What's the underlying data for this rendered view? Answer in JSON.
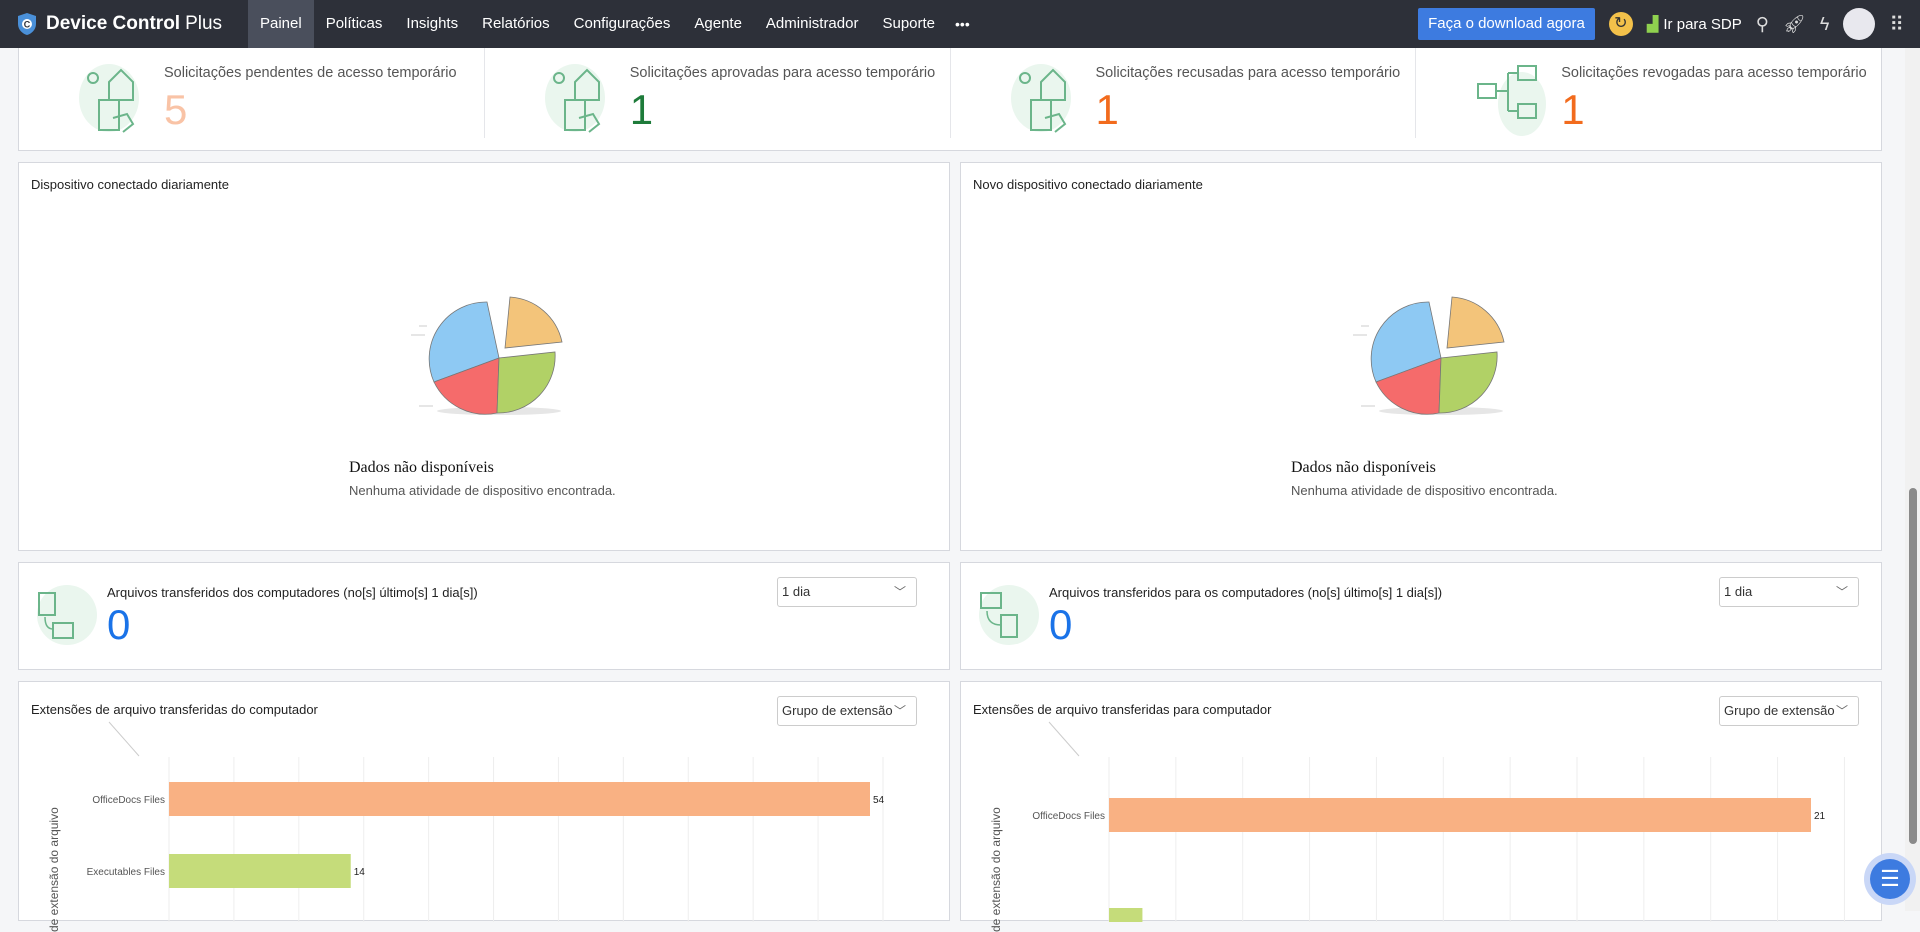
{
  "nav": {
    "brand": "Device Control",
    "brand_suffix": "Plus",
    "items": [
      "Painel",
      "Políticas",
      "Insights",
      "Relatórios",
      "Configurações",
      "Agente",
      "Administrador",
      "Suporte"
    ],
    "more": "•••",
    "download": "Faça o download agora",
    "sdp": "Ir para SDP"
  },
  "stats": [
    {
      "title": "Solicitações pendentes de acesso temporário",
      "value": "5",
      "color": "#f9c3a6"
    },
    {
      "title": "Solicitações aprovadas para acesso temporário",
      "value": "1",
      "color": "#1e7b3a"
    },
    {
      "title": "Solicitações recusadas para acesso temporário",
      "value": "1",
      "color": "#f26b1d"
    },
    {
      "title": "Solicitações revogadas para acesso temporário",
      "value": "1",
      "color": "#f26b1d"
    }
  ],
  "daily": {
    "title": "Dispositivo conectado diariamente",
    "nodata": "Dados não disponíveis",
    "nodata_sub": "Nenhuma atividade de dispositivo encontrada."
  },
  "newdaily": {
    "title": "Novo dispositivo conectado diariamente",
    "nodata": "Dados não disponíveis",
    "nodata_sub": "Nenhuma atividade de dispositivo encontrada."
  },
  "files_from": {
    "title": "Arquivos transferidos dos computadores (no[s] último[s] 1 dia[s])",
    "value": "0",
    "select": "1 dia"
  },
  "files_to": {
    "title": "Arquivos transferidos para os computadores (no[s] último[s] 1 dia[s])",
    "value": "0",
    "select": "1 dia"
  },
  "chart_data": [
    {
      "type": "bar",
      "orientation": "horizontal",
      "title": "Extensões de arquivo transferidas do computador",
      "ylabel": "de extensão do arquivo",
      "select": "Grupo de extensão",
      "categories": [
        "OfficeDocs Files",
        "Executables Files"
      ],
      "values": [
        54,
        14
      ],
      "colors": [
        "#f9b183",
        "#c5dc7a"
      ],
      "grid": true
    },
    {
      "type": "bar",
      "orientation": "horizontal",
      "title": "Extensões de arquivo transferidas para computador",
      "ylabel": "de extensão do arquivo",
      "select": "Grupo de extensão",
      "categories": [
        "OfficeDocs Files",
        ""
      ],
      "values": [
        21,
        1
      ],
      "colors": [
        "#f9b183",
        "#c5dc7a"
      ],
      "grid": true
    }
  ]
}
